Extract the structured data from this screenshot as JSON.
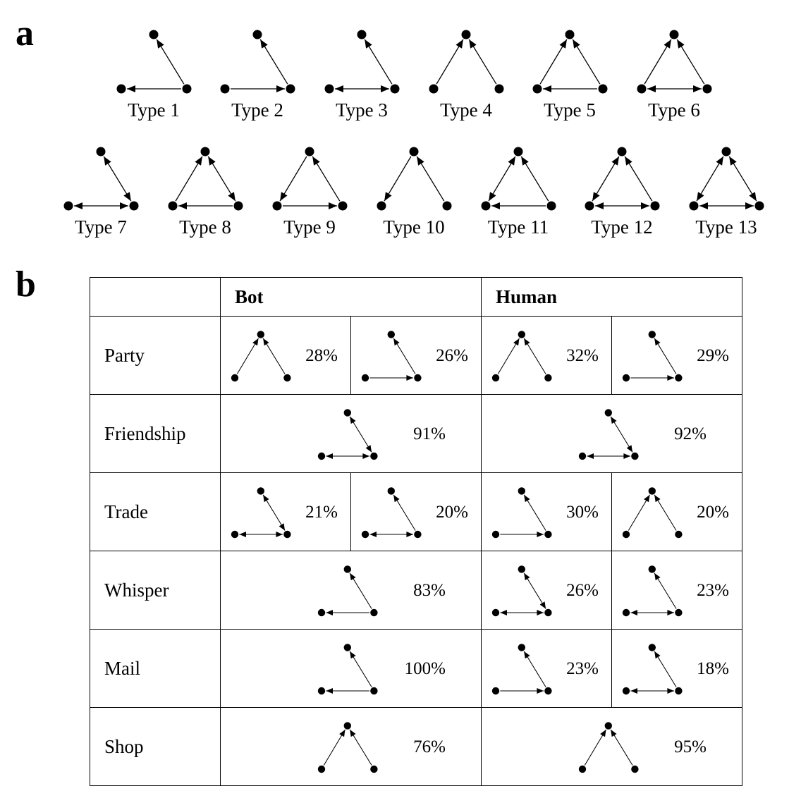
{
  "panel_a": {
    "label": "a",
    "types": [
      {
        "label": "Type 1",
        "motif": "t1"
      },
      {
        "label": "Type 2",
        "motif": "t2"
      },
      {
        "label": "Type 3",
        "motif": "t3"
      },
      {
        "label": "Type 4",
        "motif": "t4"
      },
      {
        "label": "Type 5",
        "motif": "t5"
      },
      {
        "label": "Type 6",
        "motif": "t6"
      },
      {
        "label": "Type 7",
        "motif": "t7"
      },
      {
        "label": "Type 8",
        "motif": "t8"
      },
      {
        "label": "Type 9",
        "motif": "t9"
      },
      {
        "label": "Type 10",
        "motif": "t10"
      },
      {
        "label": "Type 11",
        "motif": "t11"
      },
      {
        "label": "Type 12",
        "motif": "t12"
      },
      {
        "label": "Type 13",
        "motif": "t13"
      }
    ]
  },
  "panel_b": {
    "label": "b",
    "headers": {
      "bot": "Bot",
      "human": "Human"
    },
    "rows": [
      {
        "label": "Party",
        "bot": [
          {
            "motif": "t4",
            "pct": "28%"
          },
          {
            "motif": "t2",
            "pct": "26%"
          }
        ],
        "human": [
          {
            "motif": "t4",
            "pct": "32%"
          },
          {
            "motif": "t2",
            "pct": "29%"
          }
        ]
      },
      {
        "label": "Friendship",
        "bot": [
          {
            "motif": "t7",
            "pct": "91%"
          }
        ],
        "human": [
          {
            "motif": "t7",
            "pct": "92%"
          }
        ]
      },
      {
        "label": "Trade",
        "bot": [
          {
            "motif": "t7",
            "pct": "21%"
          },
          {
            "motif": "t3",
            "pct": "20%"
          }
        ],
        "human": [
          {
            "motif": "t2",
            "pct": "30%"
          },
          {
            "motif": "t4",
            "pct": "20%"
          }
        ]
      },
      {
        "label": "Whisper",
        "bot": [
          {
            "motif": "t1",
            "pct": "83%"
          }
        ],
        "human": [
          {
            "motif": "t7",
            "pct": "26%"
          },
          {
            "motif": "t3",
            "pct": "23%"
          }
        ]
      },
      {
        "label": "Mail",
        "bot": [
          {
            "motif": "t1",
            "pct": "100%"
          }
        ],
        "human": [
          {
            "motif": "t2",
            "pct": "23%"
          },
          {
            "motif": "t3",
            "pct": "18%"
          }
        ]
      },
      {
        "label": "Shop",
        "bot": [
          {
            "motif": "t4",
            "pct": "76%"
          }
        ],
        "human": [
          {
            "motif": "t4",
            "pct": "95%"
          }
        ]
      }
    ]
  }
}
